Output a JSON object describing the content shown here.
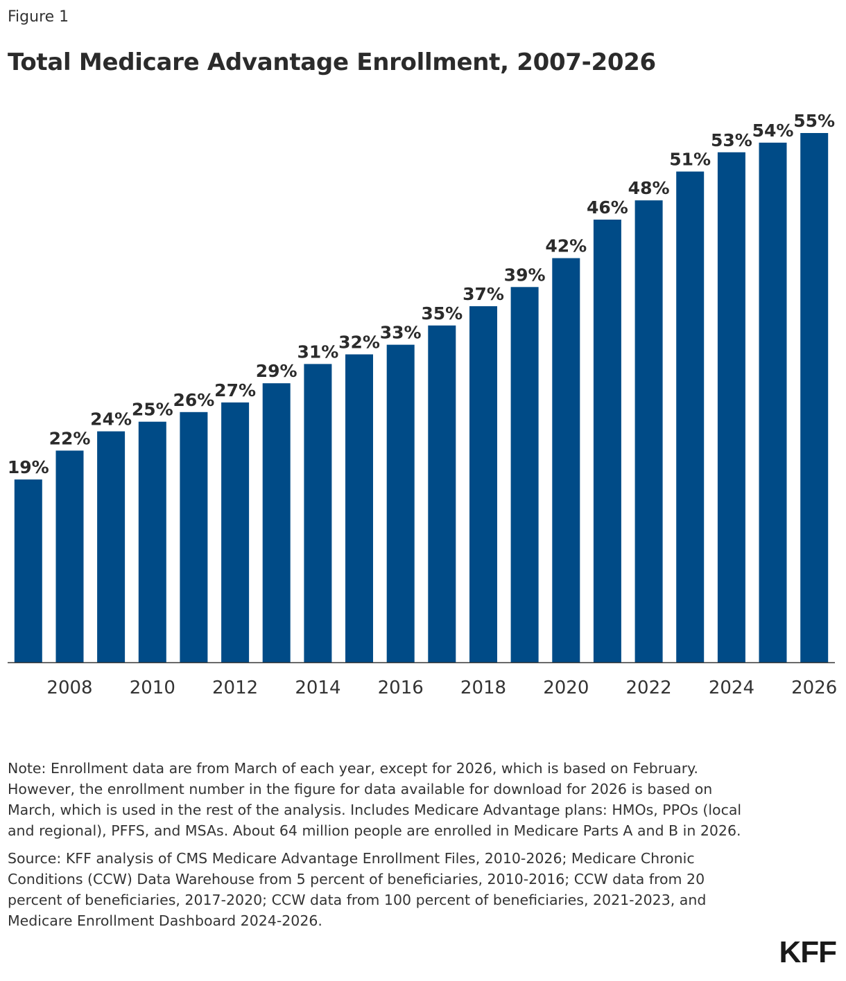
{
  "figure_label": "Figure 1",
  "chart_data": {
    "type": "bar",
    "title": "Total Medicare Advantage Enrollment, 2007-2026",
    "categories": [
      "2007",
      "2008",
      "2009",
      "2010",
      "2011",
      "2012",
      "2013",
      "2014",
      "2015",
      "2016",
      "2017",
      "2018",
      "2019",
      "2020",
      "2021",
      "2022",
      "2023",
      "2024",
      "2025",
      "2026"
    ],
    "values": [
      19,
      22,
      24,
      25,
      26,
      27,
      29,
      31,
      32,
      33,
      35,
      37,
      39,
      42,
      46,
      48,
      51,
      53,
      54,
      55
    ],
    "data_labels": [
      "19%",
      "22%",
      "24%",
      "25%",
      "26%",
      "27%",
      "29%",
      "31%",
      "32%",
      "33%",
      "35%",
      "37%",
      "39%",
      "42%",
      "46%",
      "48%",
      "51%",
      "53%",
      "54%",
      "55%"
    ],
    "x_tick_labels": [
      "2008",
      "2010",
      "2012",
      "2014",
      "2016",
      "2018",
      "2020",
      "2022",
      "2024",
      "2026"
    ],
    "xlabel": "",
    "ylabel": "",
    "ylim": [
      0,
      55
    ],
    "grid": false,
    "bar_color": "#004b87"
  },
  "notes": {
    "note": "Note: Enrollment data are from March of each year, except for 2026, which is based on February. However, the enrollment number in the figure for data available for download for 2026 is based on March, which is used in the rest of the analysis. Includes Medicare Advantage plans: HMOs, PPOs (local and regional), PFFS, and MSAs. About 64 million people are enrolled in Medicare Parts A and B in 2026.",
    "source": "Source: KFF analysis of CMS Medicare Advantage Enrollment Files, 2010-2026; Medicare Chronic Conditions (CCW) Data Warehouse from 5 percent of beneficiaries, 2010-2016; CCW data from 20 percent of beneficiaries, 2017-2020; CCW data from 100 percent of beneficiaries, 2021-2023, and Medicare Enrollment Dashboard 2024-2026."
  },
  "logo": "KFF"
}
